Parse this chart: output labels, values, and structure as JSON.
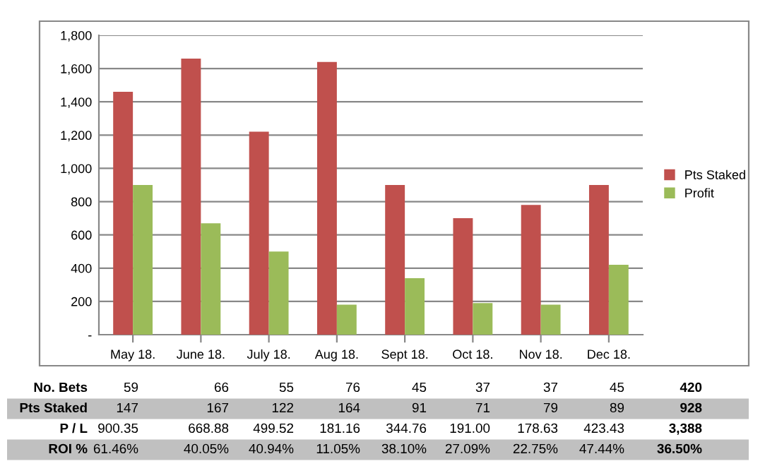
{
  "chart_data": {
    "type": "bar",
    "categories": [
      "May 18.",
      "June 18.",
      "July 18.",
      "Aug 18.",
      "Sept 18.",
      "Oct 18.",
      "Nov 18.",
      "Dec 18."
    ],
    "series": [
      {
        "name": "Pts Staked",
        "color": "#c0504d",
        "values": [
          1460,
          1660,
          1220,
          1640,
          900,
          700,
          780,
          900
        ]
      },
      {
        "name": "Profit",
        "color": "#9bbb59",
        "values": [
          900,
          670,
          500,
          180,
          340,
          190,
          180,
          420
        ]
      }
    ],
    "ylim": [
      0,
      1800
    ],
    "yticks": [
      {
        "value": 0,
        "label": "-"
      },
      {
        "value": 200,
        "label": "200"
      },
      {
        "value": 400,
        "label": "400"
      },
      {
        "value": 600,
        "label": "600"
      },
      {
        "value": 800,
        "label": "800"
      },
      {
        "value": 1000,
        "label": "1,000"
      },
      {
        "value": 1200,
        "label": "1,200"
      },
      {
        "value": 1400,
        "label": "1,400"
      },
      {
        "value": 1600,
        "label": "1,600"
      },
      {
        "value": 1800,
        "label": "1,800"
      }
    ],
    "grid": "y",
    "legend": "right",
    "annotations": [
      "No. Bets",
      "59",
      "66",
      "55",
      "76",
      "45",
      "37",
      "37",
      "45",
      "420",
      "Pts Staked",
      "147",
      "167",
      "122",
      "164",
      "91",
      "71",
      "79",
      "89",
      "928",
      "P / L",
      "900.35",
      "668.88",
      "499.52",
      "181.16",
      "344.76",
      "191.00",
      "178.63",
      "423.43",
      "3,388",
      "ROI %",
      "61.46%",
      "40.05%",
      "40.94%",
      "11.05%",
      "38.10%",
      "27.09%",
      "22.75%",
      "47.44%",
      "36.50%"
    ]
  }
}
